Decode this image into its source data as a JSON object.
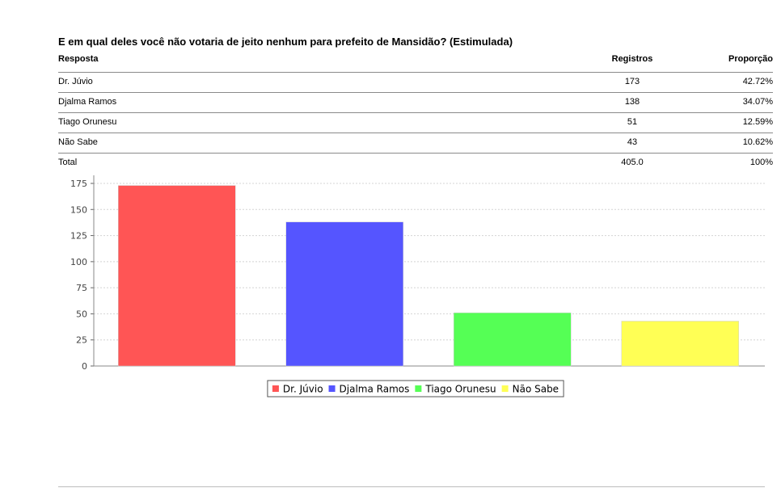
{
  "title": "E em qual deles você não votaria de jeito nenhum para prefeito de Mansidão? (Estimulada)",
  "table": {
    "headers": [
      "Resposta",
      "Registros",
      "Proporção"
    ],
    "rows": [
      [
        "Dr. Júvio",
        "173",
        "42.72%"
      ],
      [
        "Djalma Ramos",
        "138",
        "34.07%"
      ],
      [
        "Tiago Orunesu",
        "51",
        "12.59%"
      ],
      [
        "Não Sabe",
        "43",
        "10.62%"
      ]
    ],
    "total": [
      "Total",
      "405.0",
      "100%"
    ]
  },
  "chart_data": {
    "type": "bar",
    "categories": [
      "Dr. Júvio",
      "Djalma Ramos",
      "Tiago Orunesu",
      "Não Sabe"
    ],
    "values": [
      173,
      138,
      51,
      43
    ],
    "colors": [
      "#ff5555",
      "#5555ff",
      "#55ff55",
      "#ffff55"
    ],
    "ylim": [
      0,
      175
    ],
    "yticks": [
      "0",
      "25",
      "50",
      "75",
      "100",
      "125",
      "150",
      "175"
    ],
    "grid": true,
    "legend_position": "bottom-center",
    "legend": [
      "Dr. Júvio",
      "Djalma Ramos",
      "Tiago Orunesu",
      "Não Sabe"
    ]
  }
}
